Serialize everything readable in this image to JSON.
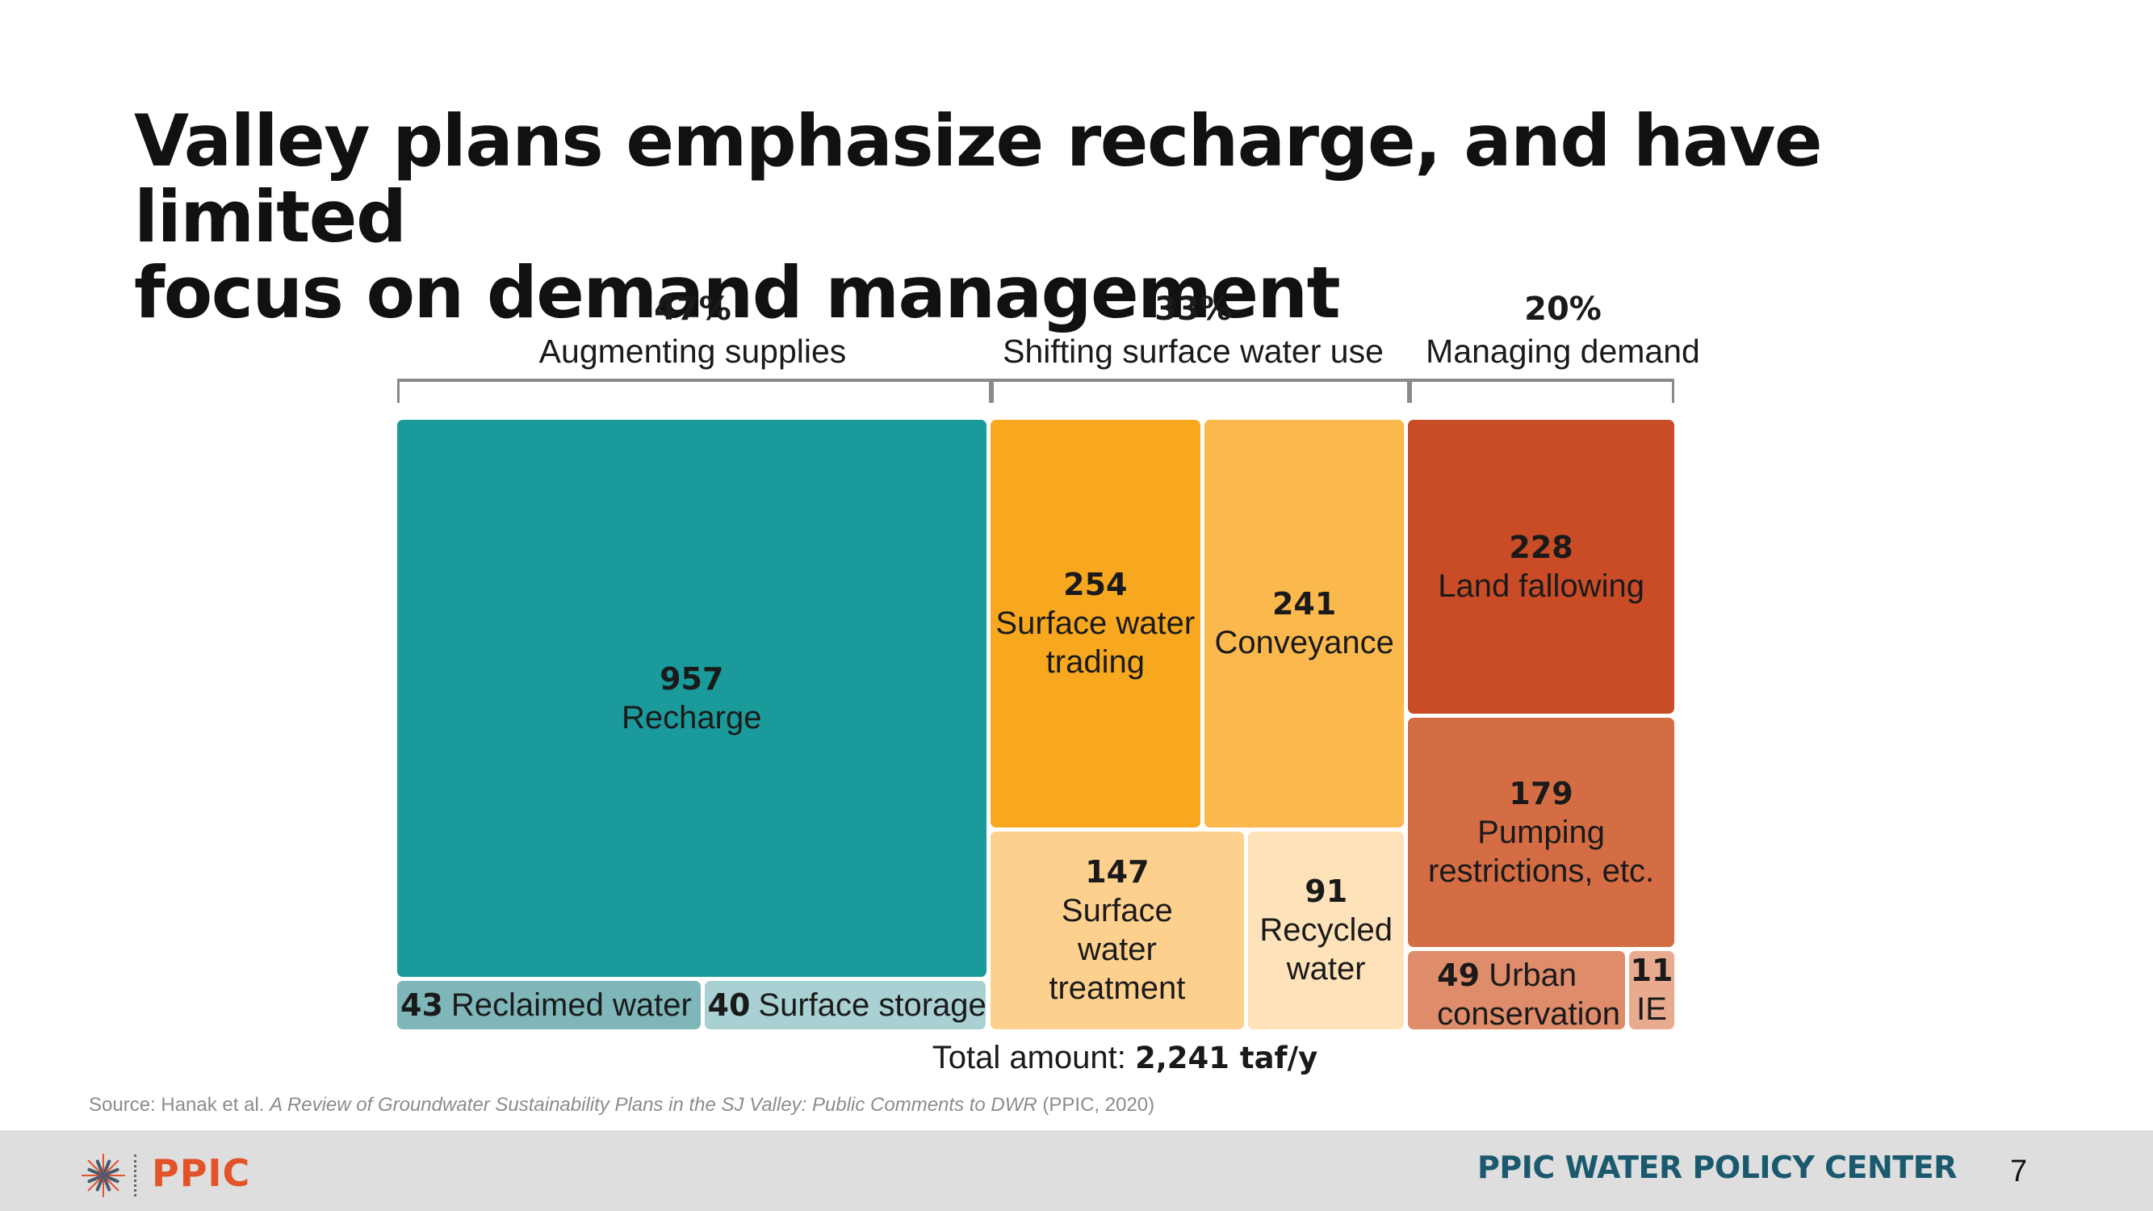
{
  "slide": {
    "title_line1": "Valley plans emphasize recharge, and have limited",
    "title_line2": "focus on demand management",
    "total_prefix": "Total amount: ",
    "total_value": "2,241 taf/y",
    "source_prefix": "Source: Hanak et al. ",
    "source_title": "A Review of Groundwater Sustainability Plans in the SJ Valley: Public Comments to DWR",
    "source_suffix": " (PPIC, 2020)",
    "footer": {
      "logo_text": "PPIC",
      "center_name": "PPIC WATER POLICY CENTER",
      "page_number": "7",
      "logo_colors": {
        "orange": "#e2532a",
        "slate": "#4a5a70"
      }
    }
  },
  "chart_data": {
    "type": "treemap",
    "title": "Valley plans emphasize recharge, and have limited focus on demand management",
    "units": "taf/y",
    "total": 2241,
    "groups": [
      {
        "name": "Augmenting supplies",
        "percent": "47%",
        "items": [
          {
            "value": 957,
            "label": "Recharge",
            "color": "#1a9a9a"
          },
          {
            "value": 43,
            "label": "Reclaimed water",
            "color": "#7fb6b9"
          },
          {
            "value": 40,
            "label": "Surface storage",
            "color": "#a9d0d2"
          }
        ]
      },
      {
        "name": "Shifting surface water use",
        "percent": "33%",
        "items": [
          {
            "value": 254,
            "label": "Surface water trading",
            "color": "#f8a81e"
          },
          {
            "value": 241,
            "label": "Conveyance",
            "color": "#fbb84c"
          },
          {
            "value": 147,
            "label": "Surface water treatment",
            "color": "#fdd08e"
          },
          {
            "value": 91,
            "label": "Recycled water",
            "color": "#fee2ba"
          }
        ]
      },
      {
        "name": "Managing demand",
        "percent": "20%",
        "items": [
          {
            "value": 228,
            "label": "Land fallowing",
            "color": "#c94c26"
          },
          {
            "value": 179,
            "label": "Pumping restrictions, etc.",
            "color": "#d56d44"
          },
          {
            "value": 49,
            "label": "Urban conservation",
            "color": "#df8c6a"
          },
          {
            "value": 11,
            "label": "IE",
            "color": "#e8ab90"
          }
        ]
      }
    ]
  }
}
